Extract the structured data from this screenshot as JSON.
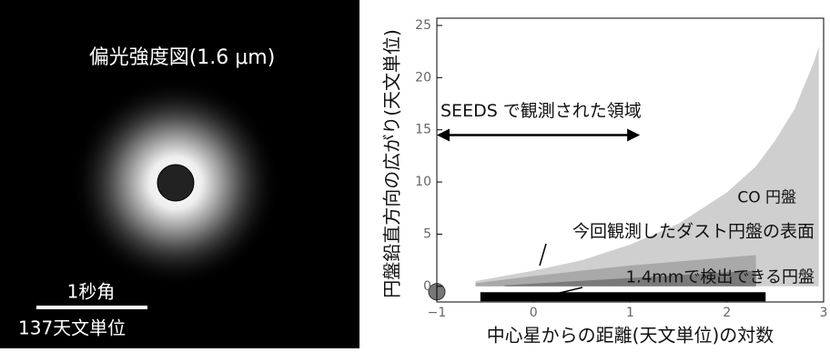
{
  "image_panel": {
    "title": "偏光強度図(1.6 μm)",
    "scale_label": "1秒角",
    "scale_distance": "137天文単位"
  },
  "chart_data": {
    "type": "area",
    "x_label": "中心星からの距離(天文単位)の対数",
    "y_label": "円盤鉛直方向の広がり(天文単位)",
    "xlim": [
      -1,
      3
    ],
    "ylim": [
      -1.5,
      25
    ],
    "xticks": [
      {
        "value": -1,
        "label": "−1"
      },
      0,
      1,
      2,
      3
    ],
    "yticks": [
      0,
      5,
      10,
      15,
      20,
      25
    ],
    "series": [
      {
        "name": "CO 円盤",
        "color": "#cfcfcf",
        "x": [
          -0.6,
          0,
          0.5,
          1,
          1.5,
          2,
          2.3,
          2.5,
          2.7,
          2.9,
          2.95
        ],
        "values": [
          0.5,
          1.5,
          2.5,
          4,
          6,
          9,
          11.5,
          14,
          17,
          21.5,
          23
        ]
      },
      {
        "name": "今回観測したダスト円盤の表面",
        "color": "#a9a9a9",
        "x": [
          -0.6,
          0,
          1,
          2.3
        ],
        "values": [
          0.3,
          1,
          2,
          3
        ]
      },
      {
        "name": "1.4mmで検出できる円盤",
        "color": "#7a7a7a",
        "x": [
          -0.3,
          1,
          2.3
        ],
        "values": [
          0.1,
          0.8,
          1.5
        ]
      }
    ],
    "detection_range": {
      "x": [
        -0.55,
        2.4
      ],
      "y": -1
    },
    "seeds": {
      "text": "SEEDS で観測された領域",
      "x": [
        -1,
        1.1
      ],
      "y": 14.5
    }
  }
}
